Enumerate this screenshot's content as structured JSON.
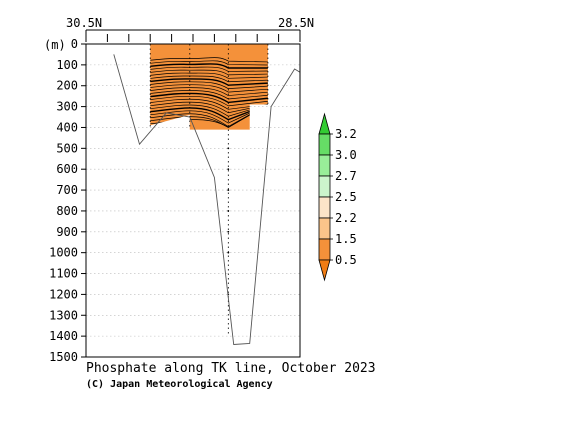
{
  "chart_data": {
    "type": "heatmap",
    "title": "Phosphate along TK line, October 2023",
    "credit": "(C) Japan Meteorological Agency",
    "x_axis": {
      "left_label": "30.5N",
      "right_label": "28.5N",
      "lat_range": [
        30.5,
        28.5
      ]
    },
    "y_axis": {
      "unit_label": "(m)",
      "range": [
        0,
        1500
      ],
      "inverted": true,
      "ticks": [
        0,
        100,
        200,
        300,
        400,
        500,
        600,
        700,
        800,
        900,
        1000,
        1100,
        1200,
        1300,
        1400,
        1500
      ]
    },
    "grid": true,
    "station_latitudes": [
      29.9,
      29.53,
      29.17,
      28.8
    ],
    "bottom_profile": [
      [
        30.24,
        50
      ],
      [
        30.0,
        480
      ],
      [
        29.75,
        330
      ],
      [
        29.53,
        350
      ],
      [
        29.3,
        640
      ],
      [
        29.12,
        1440
      ],
      [
        28.97,
        1435
      ],
      [
        28.77,
        300
      ],
      [
        28.55,
        120
      ],
      [
        28.5,
        135
      ]
    ],
    "filled_region": {
      "phosphate_class": "0.5-1.5",
      "outline": [
        [
          29.9,
          0
        ],
        [
          28.8,
          0
        ],
        [
          28.8,
          290
        ],
        [
          28.97,
          290
        ],
        [
          28.97,
          410
        ],
        [
          29.53,
          410
        ],
        [
          29.53,
          340
        ],
        [
          29.9,
          390
        ]
      ]
    },
    "legend": {
      "levels": [
        "3.2",
        "3.0",
        "2.7",
        "2.5",
        "2.2",
        "1.5",
        "0.5"
      ],
      "colors": [
        "#33cc33",
        "#66dd66",
        "#99ee99",
        "#ccf5cc",
        "#fce4c8",
        "#fbc48a",
        "#f4913a",
        "#f07c14"
      ]
    }
  }
}
